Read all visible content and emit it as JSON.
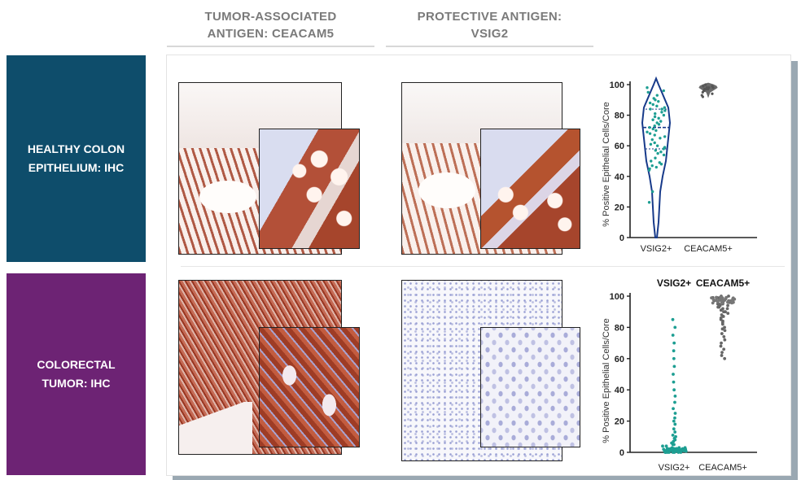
{
  "column_headers": {
    "tumor": [
      "TUMOR-ASSOCIATED",
      "ANTIGEN: CEACAM5"
    ],
    "protective": [
      "PROTECTIVE ANTIGEN:",
      "VSIG2"
    ]
  },
  "row_labels": {
    "healthy": [
      "HEALTHY COLON",
      "EPITHELIUM: IHC"
    ],
    "tumor": [
      "COLORECTAL",
      "TUMOR: IHC"
    ]
  },
  "colors": {
    "healthy_label_bg": "#0e4d6b",
    "tumor_label_bg": "#6d2374",
    "stain_brown": "#a6452c",
    "hematoxylin_blue": "#8d93c8",
    "violin_navy": "#173a8a",
    "dot_teal": "#1d9e92",
    "gray_series": "#6b6b6b"
  },
  "chart_data": [
    {
      "type": "scatter",
      "subtype": "violin",
      "ylabel": "% Positive Epithelial Cells/Core",
      "categories": [
        "VSIG2+",
        "CEACAM5+"
      ],
      "ylim": [
        0,
        100
      ],
      "yticks": [
        0,
        20,
        40,
        60,
        80,
        100
      ],
      "series": [
        {
          "category": "VSIG2+",
          "median": 72,
          "quartiles": [
            58,
            84
          ],
          "range": [
            0,
            100
          ],
          "values": [
            98,
            96,
            95,
            93,
            91,
            90,
            89,
            88,
            87,
            86,
            85,
            84,
            84,
            83,
            82,
            81,
            80,
            79,
            78,
            77,
            76,
            75,
            74,
            73,
            72,
            71,
            70,
            69,
            68,
            67,
            66,
            65,
            64,
            62,
            61,
            60,
            59,
            58,
            57,
            56,
            55,
            54,
            52,
            50,
            49,
            48,
            47,
            46,
            45,
            44,
            30,
            23
          ]
        },
        {
          "category": "CEACAM5+",
          "range": [
            92,
            100
          ],
          "values": [
            100,
            99,
            99,
            98,
            98,
            98,
            97,
            97,
            97,
            96,
            96,
            95,
            94,
            93,
            92
          ]
        }
      ]
    },
    {
      "type": "scatter",
      "subtype": "beeswarm",
      "ylabel": "% Positive Epithelial Cells/Core",
      "legend": [
        "VSIG2+",
        "CEACAM5+"
      ],
      "categories": [
        "VSIG2+",
        "CEACAM5+"
      ],
      "ylim": [
        0,
        100
      ],
      "yticks": [
        0,
        20,
        40,
        60,
        80,
        100
      ],
      "series": [
        {
          "category": "VSIG2+",
          "values": [
            85,
            80,
            75,
            70,
            65,
            60,
            55,
            50,
            45,
            40,
            36,
            32,
            28,
            25,
            22,
            20,
            18,
            15,
            13,
            11,
            10,
            9,
            8,
            7,
            6,
            5,
            5,
            4,
            4,
            3,
            3,
            3,
            2,
            2,
            2,
            2,
            1,
            1,
            1,
            1,
            1,
            1,
            0,
            0,
            0,
            0,
            0,
            0,
            0,
            0
          ]
        },
        {
          "category": "CEACAM5+",
          "values": [
            100,
            100,
            99,
            99,
            99,
            99,
            98,
            98,
            98,
            98,
            97,
            97,
            97,
            97,
            96,
            96,
            96,
            95,
            95,
            95,
            94,
            94,
            93,
            93,
            92,
            92,
            91,
            90,
            90,
            89,
            88,
            87,
            86,
            85,
            84,
            83,
            82,
            80,
            79,
            78,
            76,
            74,
            72,
            70,
            68,
            66,
            64,
            62,
            60
          ]
        }
      ]
    }
  ]
}
